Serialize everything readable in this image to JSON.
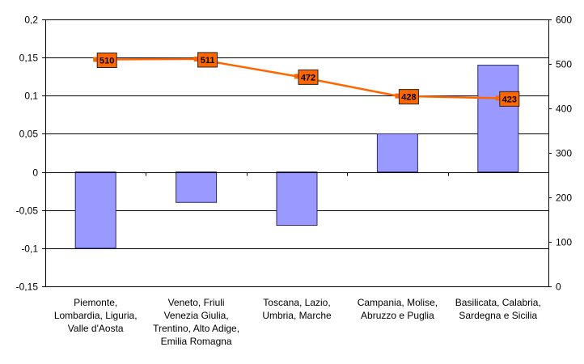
{
  "chart_data": {
    "type": "bar",
    "categories": [
      [
        "Piemonte,",
        "Lombardia, Liguria,",
        "Valle d'Aosta"
      ],
      [
        "Veneto, Friuli",
        "Venezia Giulia,",
        "Trentino, Alto Adige,",
        "Emilia Romagna"
      ],
      [
        "Toscana, Lazio,",
        "Umbria, Marche"
      ],
      [
        "Campania, Molise,",
        "Abruzzo e Puglia"
      ],
      [
        "Basilicata, Calabria,",
        "Sardegna e Sicilia"
      ]
    ],
    "series": [
      {
        "type": "bar",
        "axis": "left",
        "values": [
          -0.1,
          -0.04,
          -0.07,
          0.05,
          0.14
        ]
      },
      {
        "type": "line",
        "axis": "right",
        "values": [
          510,
          511,
          472,
          428,
          423
        ],
        "labels": [
          "510",
          "511",
          "472",
          "428",
          "423"
        ]
      }
    ],
    "y_left": {
      "min": -0.15,
      "max": 0.2,
      "step": 0.05,
      "ticks": [
        "-0,15",
        "-0,1",
        "-0,05",
        "0",
        "0,05",
        "0,1",
        "0,15",
        "0,2"
      ]
    },
    "y_right": {
      "min": 0,
      "max": 600,
      "step": 100,
      "ticks": [
        "0",
        "100",
        "200",
        "300",
        "400",
        "500",
        "600"
      ]
    },
    "grid": "horizontal",
    "legend": "none",
    "colors": {
      "bar_fill": "#9999ff",
      "bar_stroke": "#2a2a6a",
      "line": "#ff6600",
      "marker_fill": "#ff6600",
      "grid": "#000000"
    }
  }
}
